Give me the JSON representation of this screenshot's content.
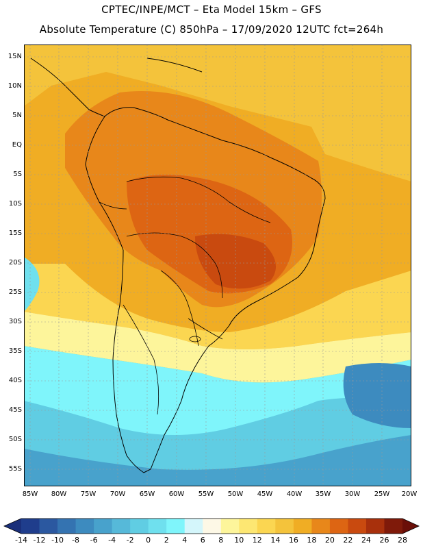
{
  "title": {
    "line1": "CPTEC/INPE/MCT –  Eta Model 15km – GFS",
    "line2": "Absolute Temperature (C) 850hPa – 17/09/2020 12UTC fct=264h"
  },
  "axes": {
    "lat_labels": [
      "15N",
      "10N",
      "5N",
      "EQ",
      "5S",
      "10S",
      "15S",
      "20S",
      "25S",
      "30S",
      "35S",
      "40S",
      "45S",
      "50S",
      "55S"
    ],
    "lon_labels": [
      "85W",
      "80W",
      "75W",
      "70W",
      "65W",
      "60W",
      "55W",
      "50W",
      "45W",
      "40W",
      "35W",
      "30W",
      "25W",
      "20W"
    ]
  },
  "colorbar": {
    "labels": [
      "-14",
      "-12",
      "-10",
      "-8",
      "-6",
      "-4",
      "-2",
      "0",
      "2",
      "4",
      "6",
      "8",
      "10",
      "12",
      "14",
      "16",
      "18",
      "20",
      "22",
      "24",
      "26",
      "28"
    ],
    "colors": [
      "#1f3d8c",
      "#2b58a0",
      "#3473b1",
      "#3d8bbf",
      "#48a2cc",
      "#56b9d9",
      "#60cde3",
      "#6fe0ee",
      "#7ff5fb",
      "#d4f6fb",
      "#fdf8e6",
      "#fdf59b",
      "#fde772",
      "#fbd651",
      "#f4c33b",
      "#f0ad24",
      "#e8871a",
      "#dd6513",
      "#c94a0f",
      "#a8300c",
      "#7f1a0a"
    ],
    "units": "C"
  },
  "map": {
    "variable": "Absolute Temperature",
    "level": "850hPa",
    "lat_range": [
      -58,
      17
    ],
    "lon_range": [
      -85.5,
      -19.5
    ]
  }
}
